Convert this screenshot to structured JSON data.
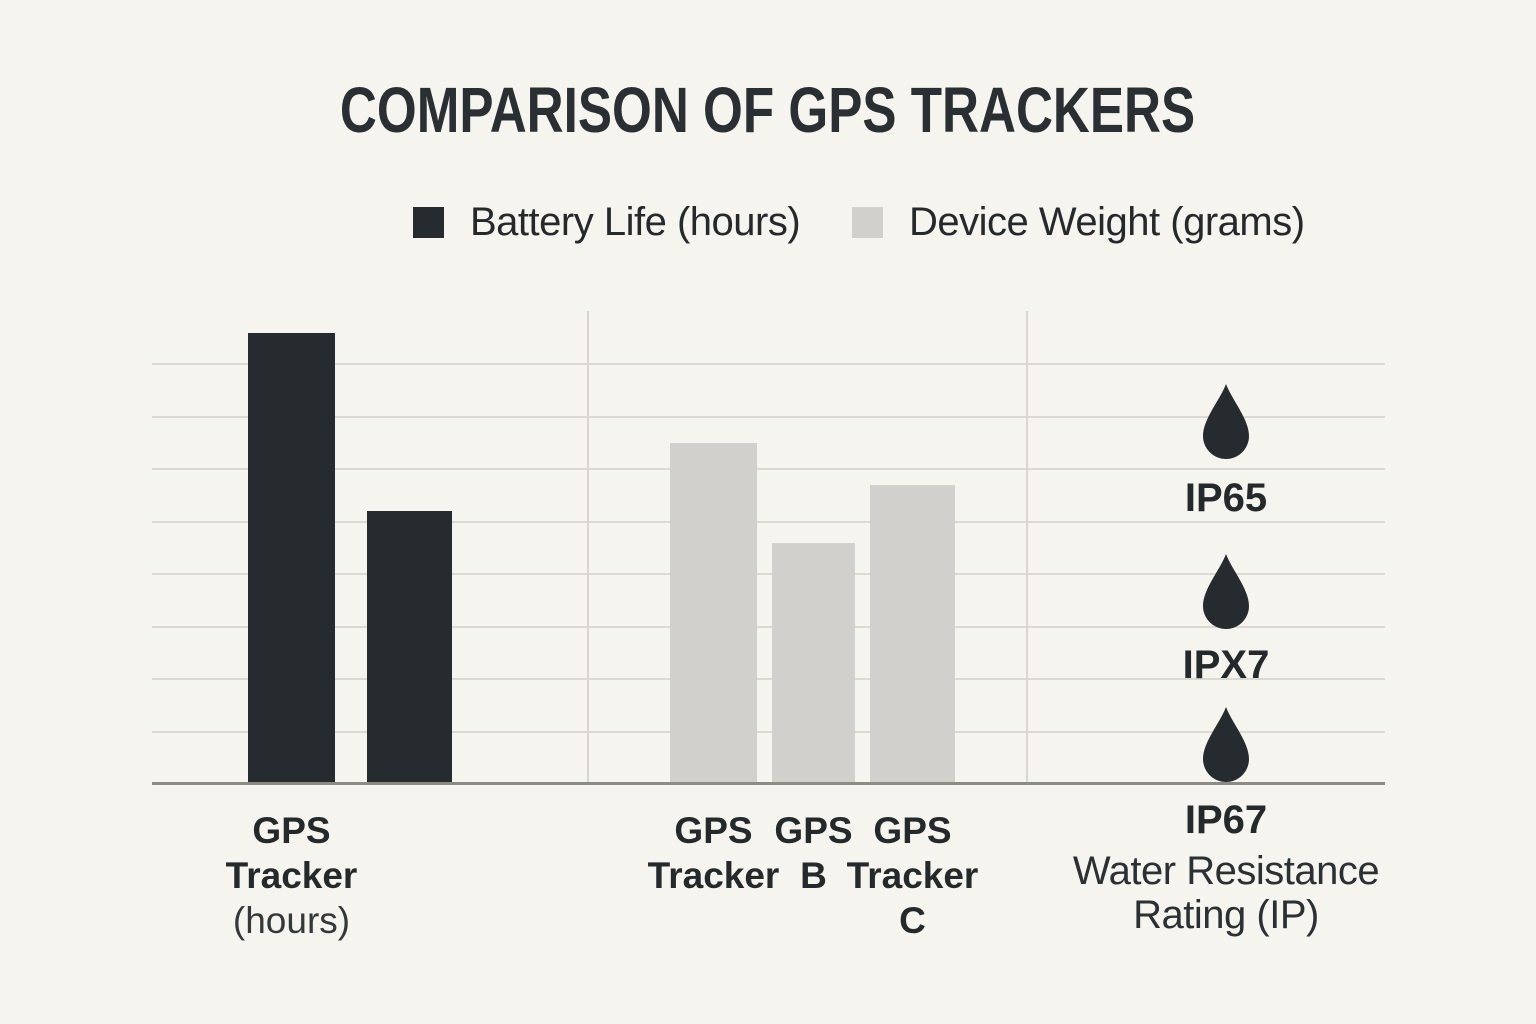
{
  "title": "COMPARISON OF GPS TRACKERS",
  "colors": {
    "background": "#f6f4ee",
    "dark": "#262b2f",
    "light_bar": "#d2d0cd",
    "gridline": "#dcd9d3",
    "axis_line": "#8c8b84",
    "text": "#272c30"
  },
  "legend": {
    "items": [
      {
        "label": "Battery Life (hours)",
        "color": "#262b2f"
      },
      {
        "label": "Device Weight (grams)",
        "color": "#d2d0cd"
      }
    ]
  },
  "chart_data": {
    "type": "bar",
    "title": "COMPARISON OF GPS TRACKERS",
    "xlabel": "",
    "ylabel": "",
    "ylim": [
      0,
      90
    ],
    "gridline_step": 10,
    "grid": true,
    "legend_position": "top",
    "groups": [
      {
        "key": "battery",
        "series": "Battery Life (hours)",
        "color_key": "dark",
        "bars": [
          {
            "label": "GPS Tracker (hours)",
            "label_lines": [
              "GPS",
              "Tracker"
            ],
            "sub_lines": [
              "(hours)"
            ],
            "value": 86
          },
          {
            "label": "",
            "label_lines": [],
            "sub_lines": [],
            "value": 52
          }
        ]
      },
      {
        "key": "weight",
        "series": "Device Weight (grams)",
        "color_key": "light_bar",
        "bars": [
          {
            "label": "GPS Tracker",
            "label_lines": [
              "GPS",
              "Tracker"
            ],
            "sub_lines": [],
            "value": 65
          },
          {
            "label": "GPS B",
            "label_lines": [
              "GPS",
              "B"
            ],
            "sub_lines": [],
            "value": 46
          },
          {
            "label": "GPS Tracker C",
            "label_lines": [
              "GPS",
              "Tracker",
              "C"
            ],
            "sub_lines": [],
            "value": 57
          }
        ]
      }
    ],
    "icon_group": {
      "icon": "water-drop-icon",
      "ratings": [
        "IP65",
        "IPX7",
        "IP67"
      ],
      "axis_label": "Water Resistance Rating (IP)",
      "axis_label_lines": [
        "Water Resistance",
        "Rating (IP)"
      ]
    }
  }
}
